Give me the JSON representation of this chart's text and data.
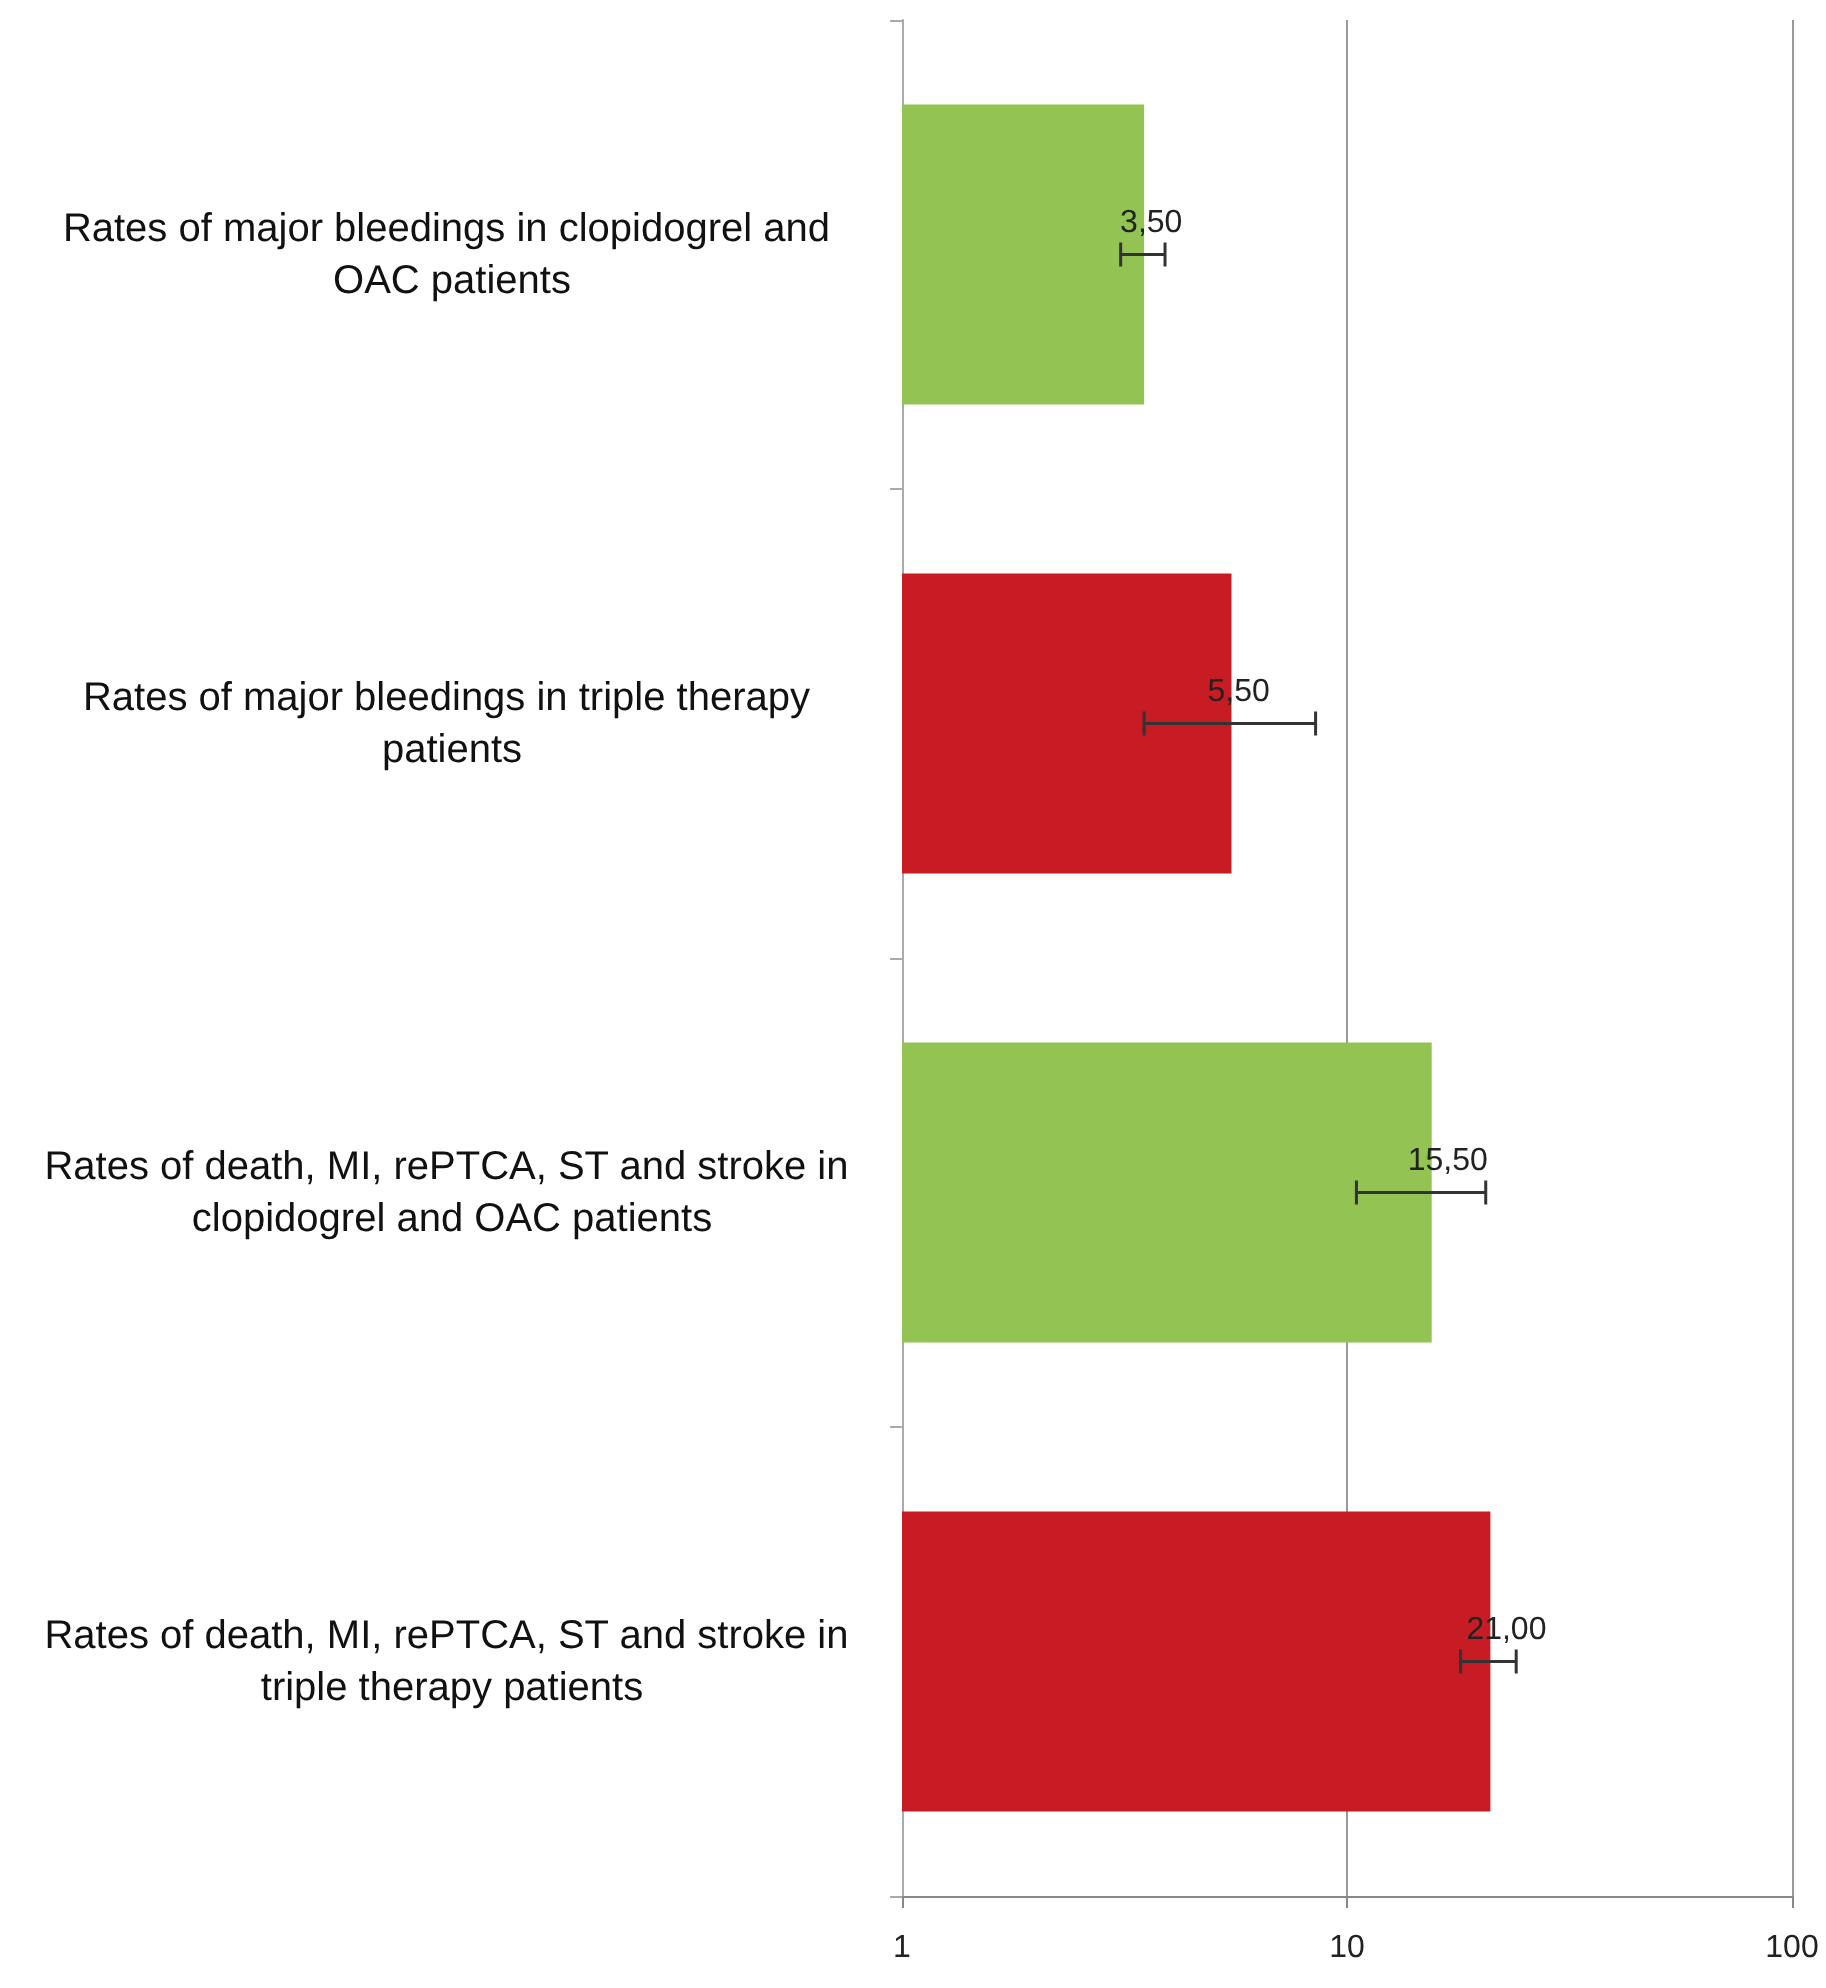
{
  "chart_data": {
    "type": "bar",
    "orientation": "horizontal",
    "log": "x",
    "categories": [
      "Rates of major bleedings in clopidogrel and OAC patients",
      "Rates of major bleedings in triple therapy patients",
      "Rates of death, MI, rePTCA, ST and stroke in clopidogrel and OAC patients",
      "Rates of death, MI, rePTCA, ST and stroke in triple therapy patients"
    ],
    "values": [
      3.5,
      5.5,
      15.5,
      21.0
    ],
    "colors": [
      "#92c353",
      "#c81c24",
      "#92c353",
      "#c81c24"
    ],
    "errors": [
      [
        3.1,
        3.9
      ],
      [
        3.5,
        8.5
      ],
      [
        10.5,
        20.5
      ],
      [
        18.0,
        24.0
      ]
    ],
    "value_labels": [
      "3,50",
      "5,50",
      "15,50",
      "21,00"
    ],
    "xlim": [
      1,
      100
    ],
    "xticks": [
      1,
      10,
      100
    ],
    "grid": "x"
  }
}
